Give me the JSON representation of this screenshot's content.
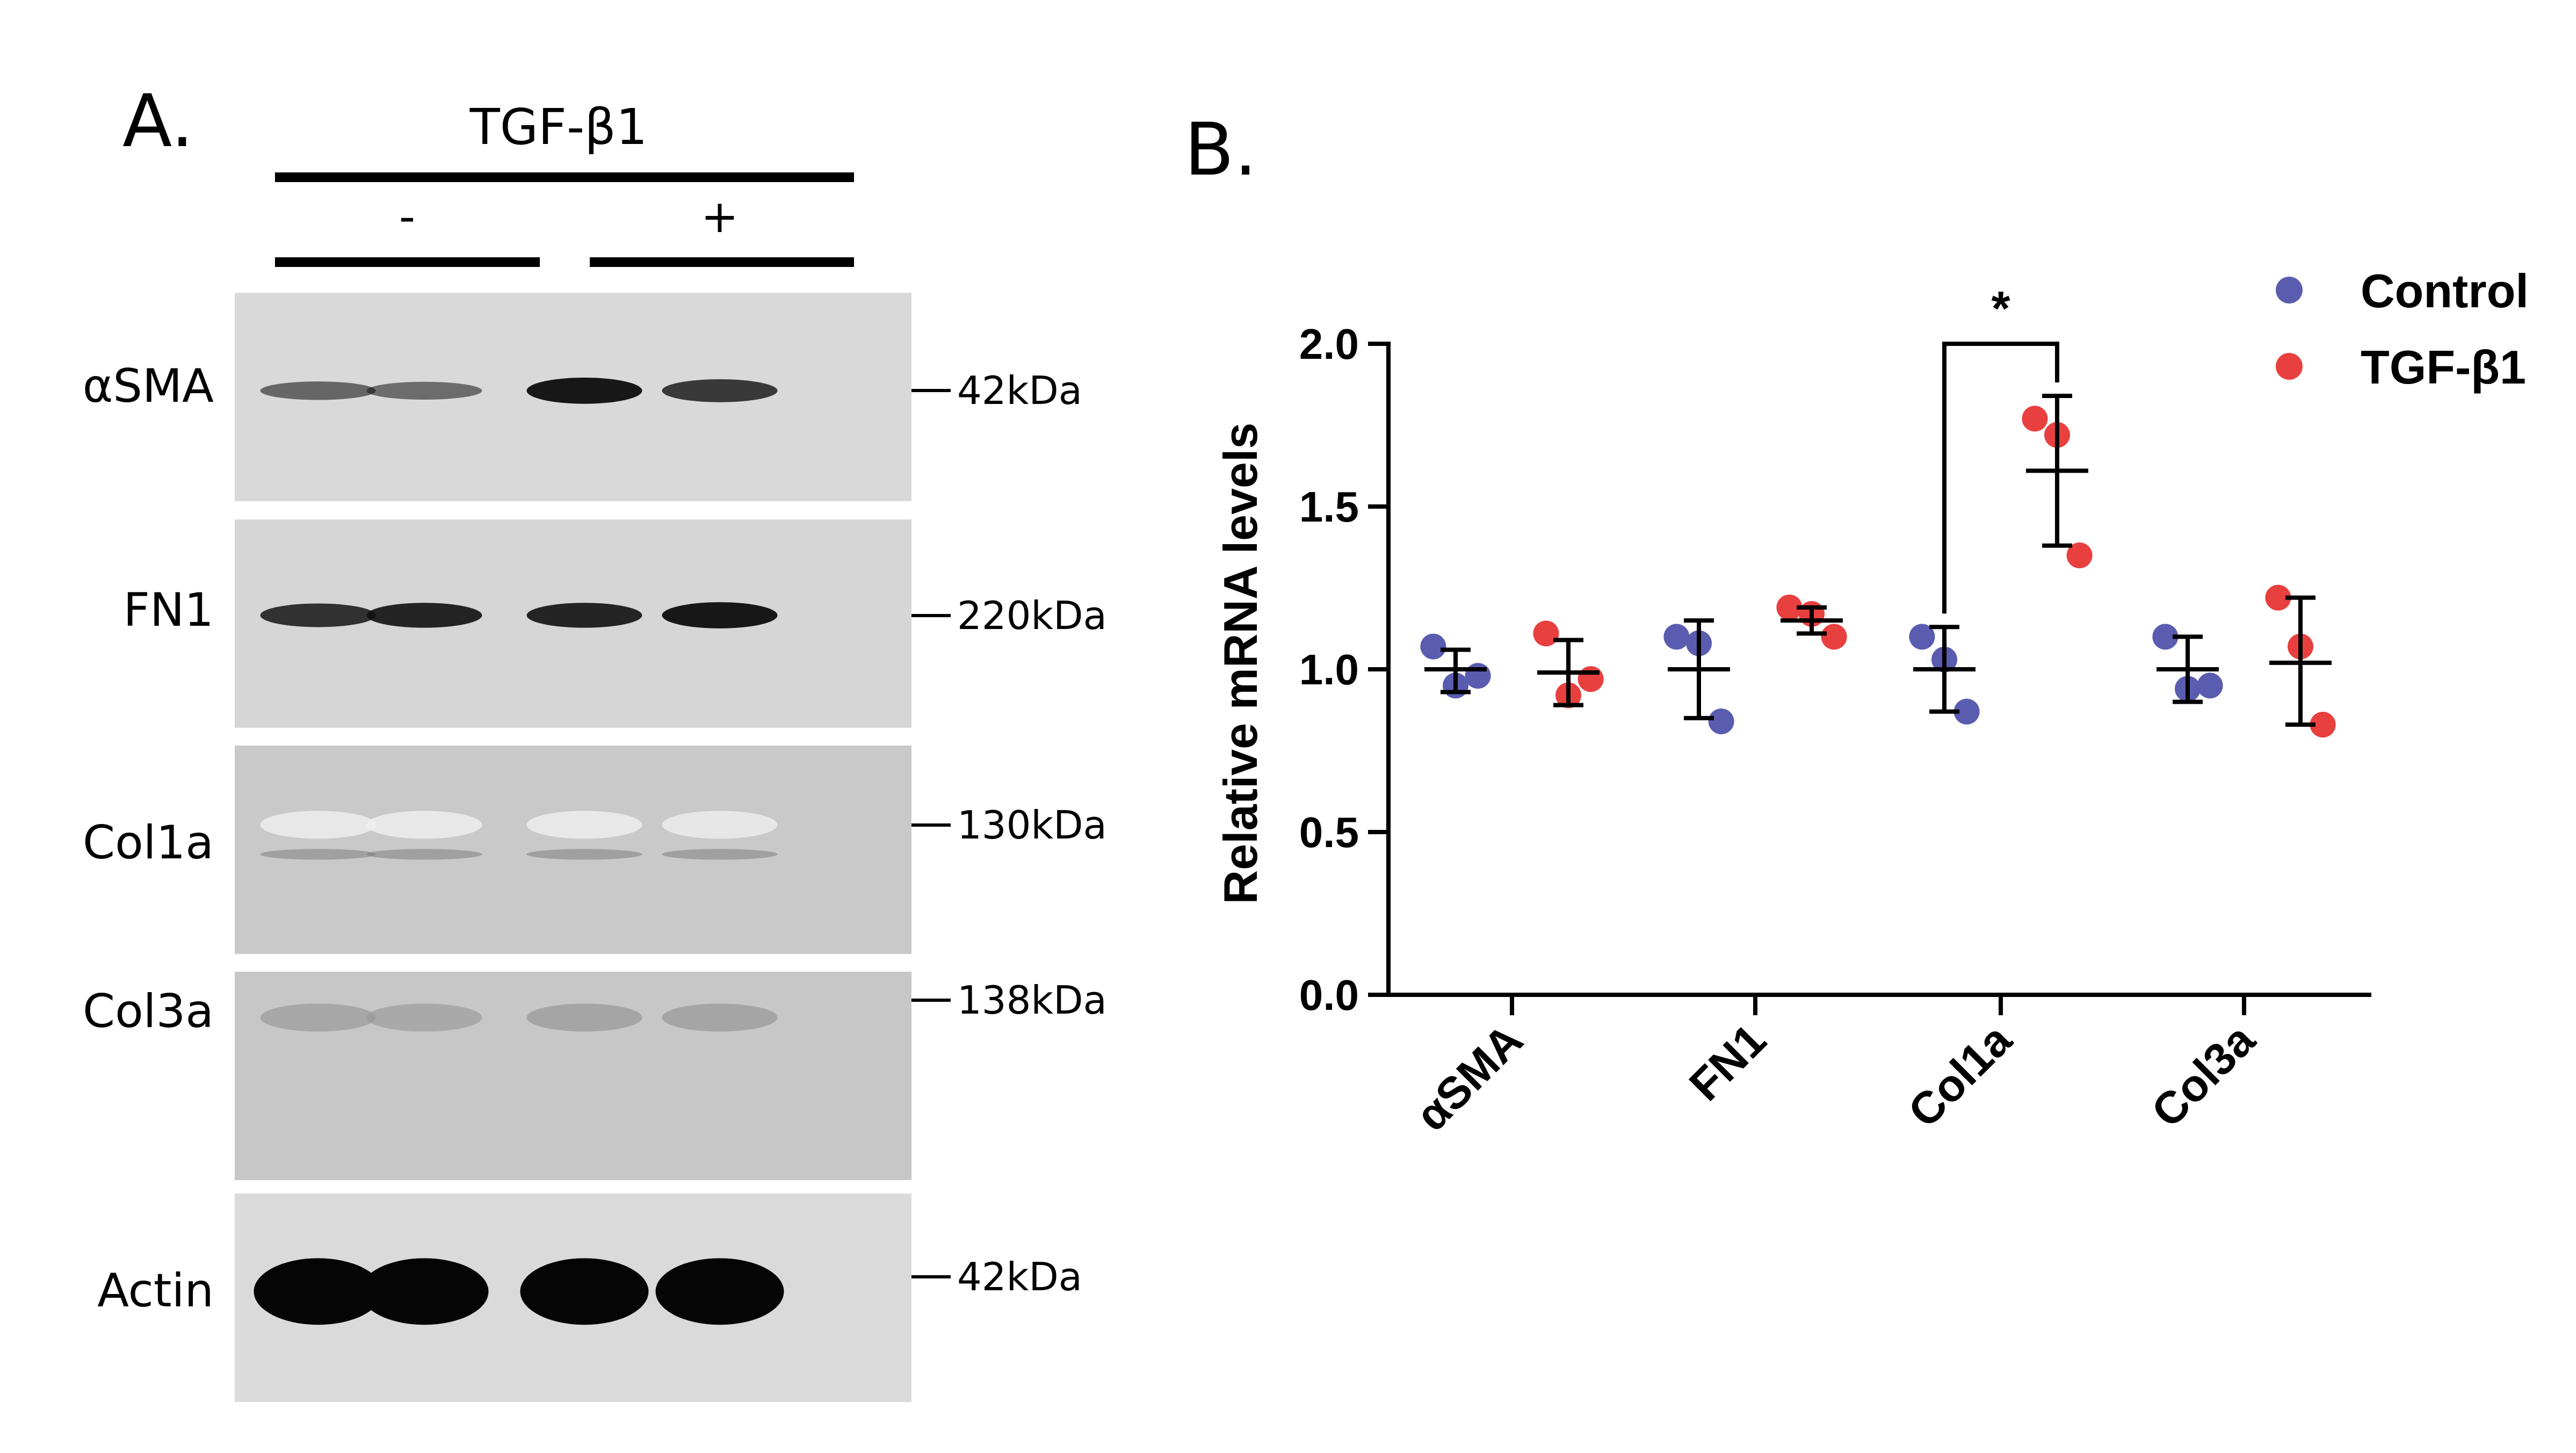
{
  "panel_a": {
    "letter": "A.",
    "treatment_label": "TGF-β1",
    "group_minus": "-",
    "group_plus": "+",
    "blots": [
      {
        "protein": "αSMA",
        "marker": "42kDa",
        "band": "strong"
      },
      {
        "protein": "FN1",
        "marker": "220kDa",
        "band": "medium"
      },
      {
        "protein": "Col1a",
        "marker": "130kDa",
        "band": "faint"
      },
      {
        "protein": "Col3a",
        "marker": "138kDa",
        "band": "faint"
      },
      {
        "protein": "Actin",
        "marker": "42kDa",
        "band": "heavy"
      }
    ],
    "band_intensity": {
      "αSMA": [
        0.35,
        0.3,
        0.95,
        0.7
      ],
      "FN1": [
        0.75,
        0.85,
        0.85,
        0.95
      ],
      "Col1a": [
        0.25,
        0.25,
        0.25,
        0.22
      ],
      "Col3a": [
        0.15,
        0.12,
        0.2,
        0.2
      ],
      "Actin": [
        1.0,
        1.0,
        1.0,
        1.0
      ]
    }
  },
  "panel_b": {
    "letter": "B.",
    "significance": "*",
    "legend": [
      {
        "label": "Control",
        "color": "#5a5cb0"
      },
      {
        "label": "TGF-β1",
        "color": "#e8403f"
      }
    ]
  },
  "chart_data": {
    "type": "scatter",
    "ylabel": "Relative mRNA levels",
    "ylim": [
      0.0,
      2.0
    ],
    "yticks": [
      "0.0",
      "0.5",
      "1.0",
      "1.5",
      "2.0"
    ],
    "categories": [
      "αSMA",
      "FN1",
      "Col1a",
      "Col3a"
    ],
    "legend_position": "top-right",
    "series": [
      {
        "name": "Control",
        "color": "#5a5cb0",
        "points": [
          [
            1.07,
            0.95,
            0.98
          ],
          [
            1.1,
            1.08,
            0.84
          ],
          [
            1.1,
            1.03,
            0.87
          ],
          [
            1.1,
            0.94,
            0.95
          ]
        ],
        "mean": [
          1.0,
          1.0,
          1.0,
          1.0
        ],
        "sd_low": [
          0.93,
          0.85,
          0.87,
          0.9
        ],
        "sd_high": [
          1.06,
          1.15,
          1.13,
          1.1
        ]
      },
      {
        "name": "TGF-β1",
        "color": "#e8403f",
        "points": [
          [
            1.11,
            0.92,
            0.97
          ],
          [
            1.19,
            1.17,
            1.1
          ],
          [
            1.77,
            1.72,
            1.35
          ],
          [
            1.22,
            1.07,
            0.83
          ]
        ],
        "mean": [
          0.99,
          1.15,
          1.61,
          1.02
        ],
        "sd_low": [
          0.89,
          1.11,
          1.38,
          0.83
        ],
        "sd_high": [
          1.09,
          1.19,
          1.84,
          1.22
        ]
      }
    ],
    "annotations": [
      {
        "text": "*",
        "between": [
          "Col1a Control",
          "Col1a TGF-β1"
        ]
      }
    ]
  }
}
